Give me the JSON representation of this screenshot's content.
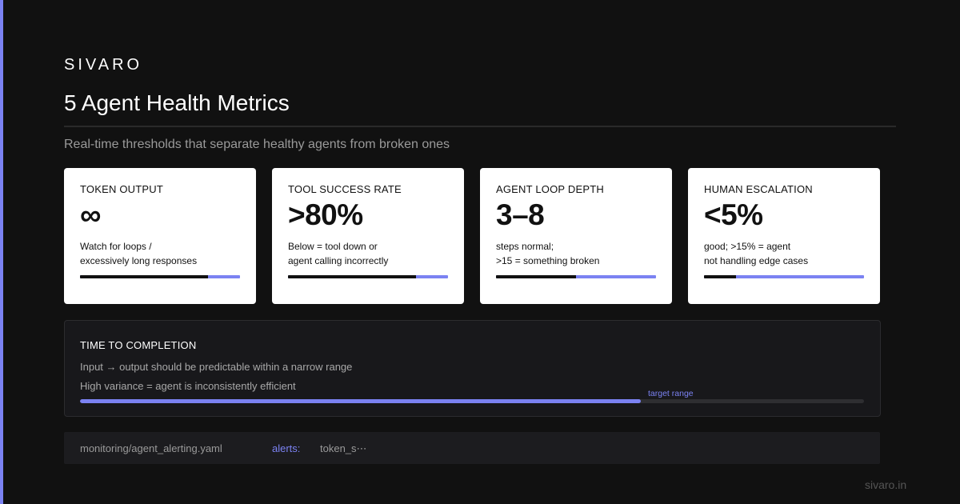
{
  "brand": "SIVARO",
  "title": "5 Agent Health Metrics",
  "subtitle": "Real-time thresholds that separate healthy agents from broken ones",
  "colors": {
    "accent": "#7b82f2",
    "background": "#111111",
    "card": "#ffffff"
  },
  "cards": [
    {
      "label": "TOKEN OUTPUT",
      "value": "∞",
      "desc1": "Watch for loops /",
      "desc2": "excessively long responses",
      "meter": 0.8
    },
    {
      "label": "TOOL SUCCESS RATE",
      "value": ">80%",
      "desc1": "Below = tool down or",
      "desc2": "agent calling incorrectly",
      "meter": 0.8
    },
    {
      "label": "AGENT LOOP DEPTH",
      "value": "3–8",
      "desc1": "steps normal;",
      "desc2": ">15 = something broken",
      "meter": 0.5
    },
    {
      "label": "HUMAN ESCALATION",
      "value": "<5%",
      "desc1": "good; >15% = agent",
      "desc2": "not handling edge cases",
      "meter": 0.2
    }
  ],
  "panel": {
    "label": "TIME TO COMPLETION",
    "line1": "Input → output should be predictable within a narrow range",
    "line2": "High variance = agent is inconsistently efficient",
    "range_label": "target range",
    "range_fill": 0.715
  },
  "code": {
    "path": "monitoring/agent_alerting.yaml",
    "key": "alerts:",
    "value": "token_s⋯"
  },
  "footer": "sivaro.in"
}
